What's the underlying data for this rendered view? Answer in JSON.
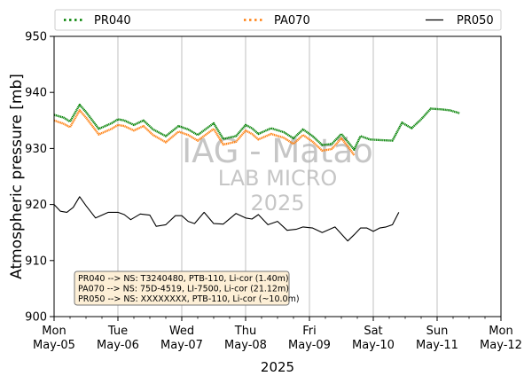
{
  "chart_data": {
    "type": "line",
    "xlabel": "2025",
    "ylabel": "Atmospheric pressure [mb]",
    "ylim": [
      900,
      950
    ],
    "yticks": [
      900,
      910,
      920,
      930,
      940,
      950
    ],
    "xlim_days": [
      0,
      7
    ],
    "xticks": [
      {
        "day": "Mon",
        "date": "May-05"
      },
      {
        "day": "Tue",
        "date": "May-06"
      },
      {
        "day": "Wed",
        "date": "May-07"
      },
      {
        "day": "Thu",
        "date": "May-08"
      },
      {
        "day": "Fri",
        "date": "May-09"
      },
      {
        "day": "Sat",
        "date": "May-10"
      },
      {
        "day": "Sun",
        "date": "May-11"
      },
      {
        "day": "Mon",
        "date": "May-12"
      }
    ],
    "grid": "vertical",
    "legend_position": "top",
    "watermark": [
      "IAG - Matão",
      "LAB MICRO",
      "2025"
    ],
    "info_box": [
      "PR040 --> NS: T3240480, PTB-110, Li-cor (1.40m)",
      "PA070 --> NS: 75D-4519, LI-7500, Li-cor (21.12m)",
      "PR050 --> NS: XXXXXXXX, PTB-110, Li-cor (~10.0m)"
    ],
    "series": [
      {
        "name": "PR040",
        "color": "#008000",
        "style": "dotted",
        "x": [
          0,
          0.15,
          0.25,
          0.4,
          0.5,
          0.7,
          0.9,
          1.0,
          1.1,
          1.25,
          1.4,
          1.55,
          1.75,
          1.95,
          2.1,
          2.25,
          2.5,
          2.65,
          2.85,
          3.0,
          3.1,
          3.2,
          3.4,
          3.6,
          3.75,
          3.9,
          4.05,
          4.2,
          4.35,
          4.5,
          4.6,
          4.7,
          4.8,
          4.95,
          5.1,
          5.3,
          5.45,
          5.6,
          5.75,
          5.9,
          6.05,
          6.2,
          6.35
        ],
        "y": [
          936,
          935.5,
          934.8,
          937.8,
          936.5,
          933.5,
          934.5,
          935.2,
          935,
          934.2,
          935,
          933.4,
          932.2,
          934,
          933.4,
          932.4,
          934.5,
          931.7,
          932.2,
          934.2,
          933.6,
          932.6,
          933.6,
          932.9,
          931.8,
          933.4,
          932.2,
          930.6,
          930.8,
          932.6,
          931.2,
          929.8,
          932.2,
          931.6,
          931.5,
          931.4,
          934.6,
          933.6,
          935.2,
          937.1,
          937.0,
          936.8,
          936.3
        ]
      },
      {
        "name": "PA070",
        "color": "#ff7f0e",
        "style": "dotted",
        "x": [
          0,
          0.15,
          0.25,
          0.4,
          0.5,
          0.7,
          0.9,
          1.0,
          1.1,
          1.25,
          1.4,
          1.55,
          1.75,
          1.95,
          2.1,
          2.25,
          2.5,
          2.65,
          2.85,
          3.0,
          3.1,
          3.2,
          3.4,
          3.6,
          3.75,
          3.9,
          4.05,
          4.2,
          4.35,
          4.5,
          4.6,
          4.7
        ],
        "y": [
          935,
          934.4,
          933.8,
          936.8,
          935.5,
          932.5,
          933.5,
          934.2,
          934,
          933.2,
          934,
          932.4,
          931.1,
          933,
          932.4,
          931.4,
          933.5,
          930.7,
          931.2,
          933.2,
          932.6,
          931.6,
          932.6,
          931.9,
          930.8,
          932.4,
          931.2,
          929.6,
          929.9,
          931.8,
          930.4,
          928.8
        ]
      },
      {
        "name": "PR050",
        "color": "#000000",
        "style": "solid",
        "x": [
          0,
          0.1,
          0.2,
          0.3,
          0.4,
          0.5,
          0.65,
          0.85,
          1.0,
          1.1,
          1.2,
          1.35,
          1.5,
          1.6,
          1.75,
          1.9,
          2.0,
          2.1,
          2.2,
          2.35,
          2.5,
          2.65,
          2.85,
          3.0,
          3.1,
          3.2,
          3.35,
          3.5,
          3.65,
          3.8,
          3.9,
          4.05,
          4.2,
          4.4,
          4.6,
          4.7,
          4.8,
          4.9,
          5.0,
          5.1,
          5.2,
          5.3,
          5.4
        ],
        "y": [
          920,
          918.8,
          918.6,
          919.5,
          921.4,
          919.8,
          917.6,
          918.6,
          918.6,
          918.2,
          917.3,
          918.3,
          918.1,
          916.1,
          916.4,
          918.0,
          918.0,
          917.0,
          916.6,
          918.6,
          916.6,
          916.5,
          918.4,
          917.6,
          917.4,
          918.2,
          916.4,
          917.0,
          915.4,
          915.6,
          916.0,
          915.8,
          915.0,
          916.0,
          913.5,
          914.6,
          915.8,
          915.8,
          915.2,
          915.8,
          916.0,
          916.4,
          918.6
        ]
      }
    ]
  }
}
